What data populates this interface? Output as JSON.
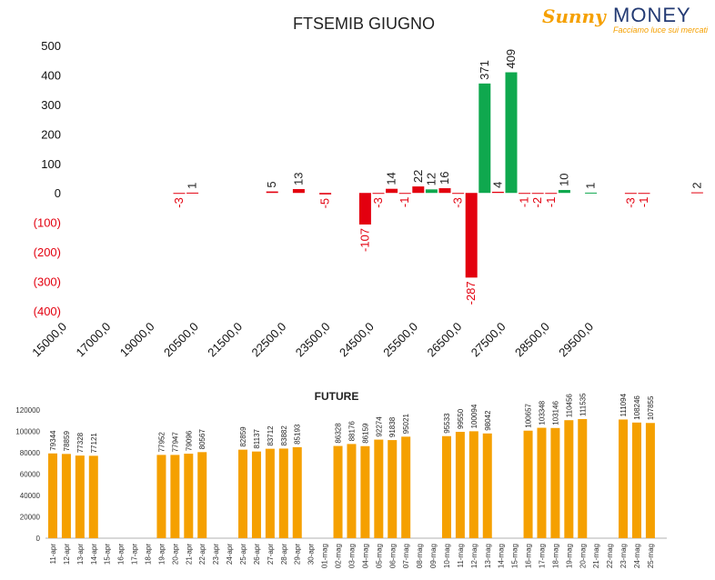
{
  "logo": {
    "brand_left": "Sunny",
    "brand_right": "MONEY",
    "tagline": "Facciamo luce sui mercati"
  },
  "chart_data": [
    {
      "type": "bar",
      "title": "FTSEMIB GIUGNO",
      "ylim": [
        -400,
        500
      ],
      "yticks": [
        {
          "value": 500,
          "label": "500"
        },
        {
          "value": 400,
          "label": "400"
        },
        {
          "value": 300,
          "label": "300"
        },
        {
          "value": 200,
          "label": "200"
        },
        {
          "value": 100,
          "label": "100"
        },
        {
          "value": 0,
          "label": "0"
        },
        {
          "value": -100,
          "label": "(100)"
        },
        {
          "value": -200,
          "label": "(200)"
        },
        {
          "value": -300,
          "label": "(300)"
        },
        {
          "value": -400,
          "label": "(400)"
        }
      ],
      "xtick_labels": [
        "15000,0",
        "17000,0",
        "19000,0",
        "20500,0",
        "21500,0",
        "22500,0",
        "23500,0",
        "24500,0",
        "25500,0",
        "26500,0",
        "27500,0",
        "28500,0",
        "29500,0"
      ],
      "bars": [
        {
          "x": 18875,
          "value": -3,
          "label": "-3"
        },
        {
          "x": 19125,
          "value": 1,
          "label": "1"
        },
        {
          "x": 20625,
          "value": 5,
          "label": "5"
        },
        {
          "x": 21125,
          "value": 13,
          "label": "13"
        },
        {
          "x": 21625,
          "value": -5,
          "label": "-5"
        },
        {
          "x": 22375,
          "value": -107,
          "label": "-107"
        },
        {
          "x": 22625,
          "value": -3,
          "label": "-3"
        },
        {
          "x": 22875,
          "value": 14,
          "label": "14"
        },
        {
          "x": 23125,
          "value": -1,
          "label": "-1"
        },
        {
          "x": 23375,
          "value": 22,
          "label": "22"
        },
        {
          "x": 23625,
          "value": 12,
          "label": "12"
        },
        {
          "x": 23875,
          "value": 16,
          "label": "16"
        },
        {
          "x": 24125,
          "value": -3,
          "label": "-3"
        },
        {
          "x": 24375,
          "value": -287,
          "label": "-287"
        },
        {
          "x": 24625,
          "value": 371,
          "label": "371"
        },
        {
          "x": 24875,
          "value": 4,
          "label": "4"
        },
        {
          "x": 25125,
          "value": 409,
          "label": "409"
        },
        {
          "x": 25375,
          "value": -1,
          "label": "-1"
        },
        {
          "x": 25625,
          "value": -2,
          "label": "-2"
        },
        {
          "x": 25875,
          "value": -1,
          "label": "-1"
        },
        {
          "x": 26125,
          "value": 10,
          "label": "10"
        },
        {
          "x": 26625,
          "value": 1,
          "label": "1"
        },
        {
          "x": 27375,
          "value": -3,
          "label": "-3"
        },
        {
          "x": 27625,
          "value": -1,
          "label": "-1"
        },
        {
          "x": 28625,
          "value": 2,
          "label": "2"
        }
      ],
      "colors": {
        "positive_red": "#e3000f",
        "positive_green": "#0fa84e",
        "negative_label": "#e3000f",
        "label": "#222222"
      }
    },
    {
      "type": "bar",
      "title": "FUTURE",
      "ylim": [
        0,
        120000
      ],
      "yticks": [
        0,
        20000,
        40000,
        60000,
        80000,
        100000,
        120000
      ],
      "categories": [
        "11-apr",
        "12-apr",
        "13-apr",
        "14-apr",
        "15-apr",
        "16-apr",
        "17-apr",
        "18-apr",
        "19-apr",
        "20-apr",
        "21-apr",
        "22-apr",
        "23-apr",
        "24-apr",
        "25-apr",
        "26-apr",
        "27-apr",
        "28-apr",
        "29-apr",
        "30-apr",
        "01-mag",
        "02-mag",
        "03-mag",
        "04-mag",
        "05-mag",
        "06-mag",
        "07-mag",
        "08-mag",
        "09-mag",
        "10-mag",
        "11-mag",
        "12-mag",
        "13-mag",
        "14-mag",
        "15-mag",
        "16-mag",
        "17-mag",
        "18-mag",
        "19-mag",
        "20-mag",
        "21-mag",
        "22-mag",
        "23-mag",
        "24-mag",
        "25-mag"
      ],
      "values": [
        79344,
        78859,
        77328,
        77121,
        null,
        null,
        null,
        null,
        77952,
        77947,
        79096,
        80567,
        null,
        null,
        82859,
        81137,
        83712,
        83882,
        85193,
        null,
        null,
        86328,
        88176,
        86159,
        92274,
        91838,
        95021,
        null,
        null,
        95533,
        99550,
        100094,
        98042,
        null,
        null,
        100657,
        103348,
        103146,
        110456,
        111535,
        null,
        null,
        111094,
        108246,
        107855
      ],
      "labels": [
        "79344",
        "78859",
        "77328",
        "77121",
        "",
        "",
        "",
        "",
        "77952",
        "77947",
        "79096",
        "80567",
        "",
        "",
        "82859",
        "81137",
        "83712",
        "83882",
        "85193",
        "",
        "",
        "86328",
        "88176",
        "86159",
        "92274",
        "91838",
        "95021",
        "",
        "",
        "95533",
        "99550",
        "100094",
        "98042",
        "",
        "",
        "100657",
        "103348",
        "103146",
        "110456",
        "111535",
        "",
        "",
        "111094",
        "108246",
        "107855"
      ],
      "color": "#f5a000"
    }
  ]
}
